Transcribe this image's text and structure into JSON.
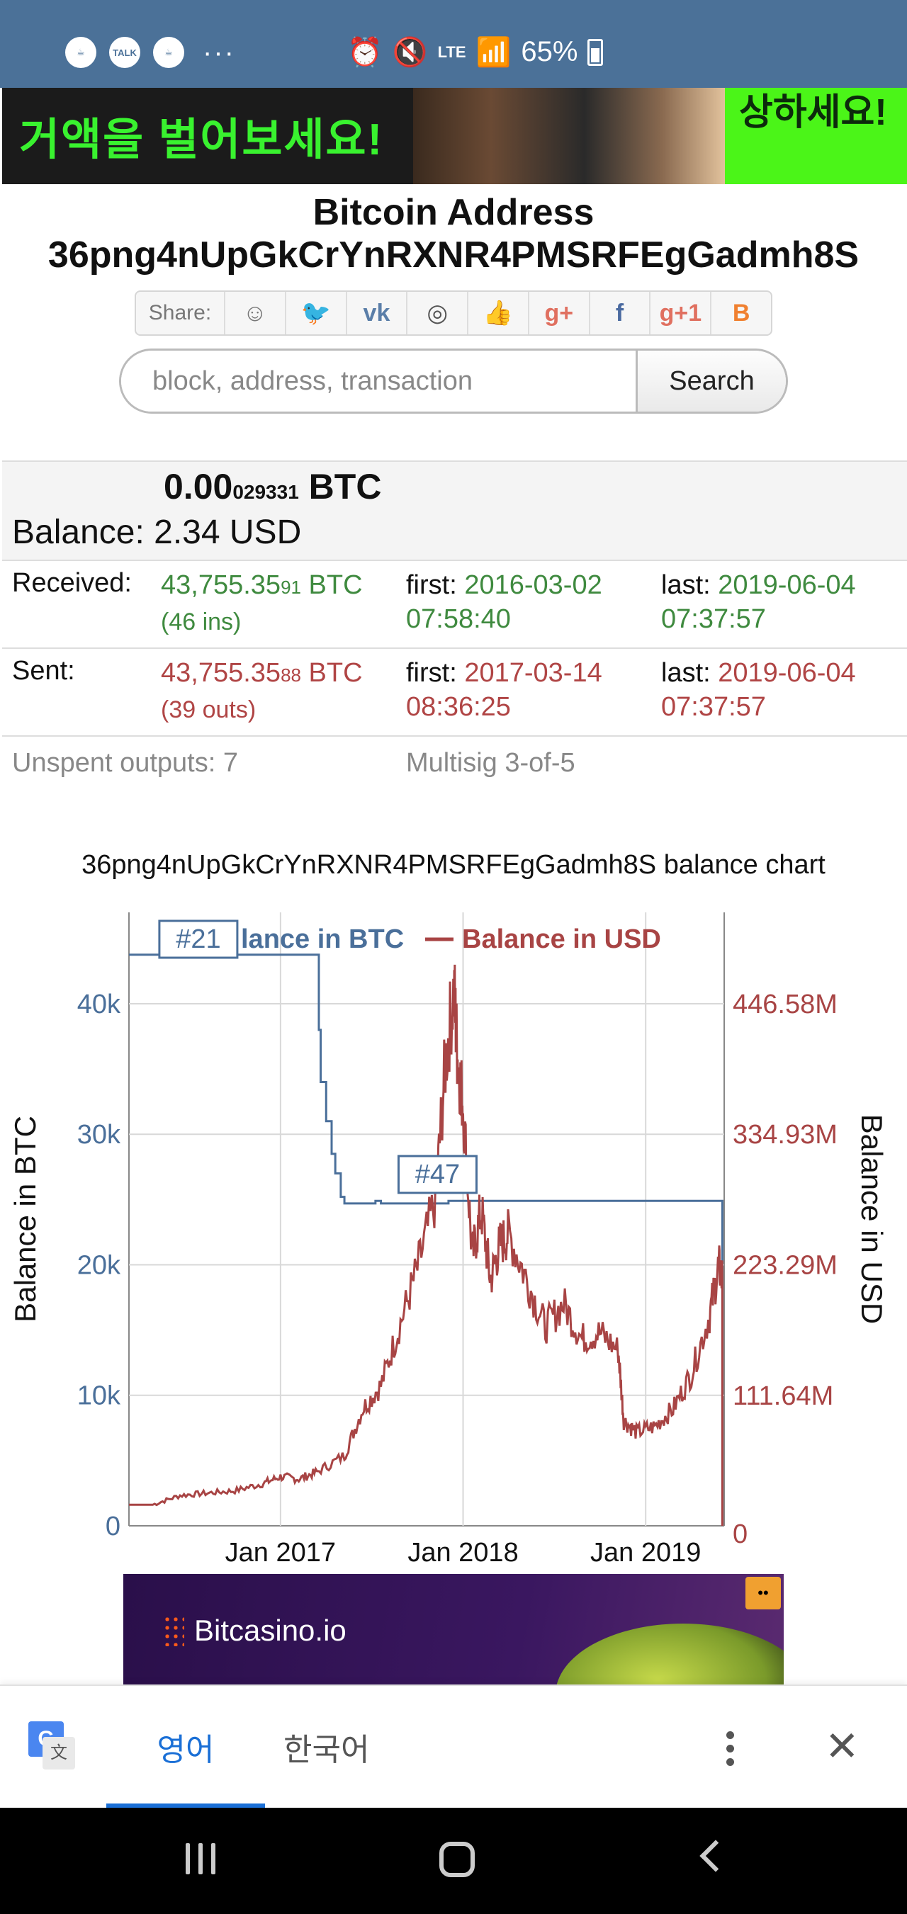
{
  "status_bar": {
    "left_icons": [
      "starbucks-icon",
      "talk-icon",
      "starbucks-icon"
    ],
    "talk_label": "TALK",
    "more_label": "···",
    "network_label": "LTE",
    "battery_percent": "65%"
  },
  "banner": {
    "text_left": "거액을 벌어보세요!",
    "text_right": "상하세요!"
  },
  "header": {
    "title_line1": "Bitcoin Address",
    "title_line2": "36png4nUpGkCrYnRXNR4PMSRFEgGadmh8S"
  },
  "share": {
    "label": "Share:",
    "buttons": [
      {
        "name": "reddit-icon",
        "glyph": "☺",
        "color": "#777777"
      },
      {
        "name": "twitter-icon",
        "glyph": "🐦",
        "color": "#4aa3e0"
      },
      {
        "name": "vk-icon",
        "glyph": "vk",
        "color": "#5a7ea8"
      },
      {
        "name": "weibo-icon",
        "glyph": "◎",
        "color": "#555555"
      },
      {
        "name": "like-icon",
        "glyph": "👍",
        "color": "#4a7ac0"
      },
      {
        "name": "google-plus-icon",
        "glyph": "g+",
        "color": "#e07060"
      },
      {
        "name": "facebook-icon",
        "glyph": "f",
        "color": "#4a6aa0"
      },
      {
        "name": "google-plus-one-icon",
        "glyph": "g+1",
        "color": "#e07060"
      },
      {
        "name": "blogger-icon",
        "glyph": "B",
        "color": "#f08030"
      }
    ]
  },
  "search": {
    "placeholder": "block, address, transaction",
    "button_label": "Search"
  },
  "balance": {
    "btc_main": "0.00",
    "btc_small": "029331",
    "btc_unit": "BTC",
    "usd_text": "Balance: 2.34 USD"
  },
  "received": {
    "label": "Received:",
    "amount_main": "43,755.35",
    "amount_small": "91",
    "unit": "BTC",
    "count": "(46 ins)",
    "first_label": "first:",
    "first_date": "2016-03-02",
    "first_time": "07:58:40",
    "last_label": "last:",
    "last_date": "2019-06-04",
    "last_time": "07:37:57"
  },
  "sent": {
    "label": "Sent:",
    "amount_main": "43,755.35",
    "amount_small": "88",
    "unit": "BTC",
    "count": "(39 outs)",
    "first_label": "first:",
    "first_date": "2017-03-14",
    "first_time": "08:36:25",
    "last_label": "last:",
    "last_date": "2019-06-04",
    "last_time": "07:37:57"
  },
  "misc": {
    "unspent": "Unspent outputs: 7",
    "multisig": "Multisig 3-of-5"
  },
  "chart_title": "36png4nUpGkCrYnRXNR4PMSRFEgGadmh8S balance chart",
  "chart_data": {
    "type": "line",
    "legend": [
      "Balance in BTC",
      "Balance in USD"
    ],
    "legend_visible_text": "lance in BTC",
    "legend_usd_text": "Balance in USD",
    "ylabel_left": "Balance in BTC",
    "ylabel_right": "Balance in USD",
    "left_ticks": [
      "0",
      "10k",
      "20k",
      "30k",
      "40k"
    ],
    "left_tick_values": [
      0,
      10000,
      20000,
      30000,
      40000
    ],
    "left_ylim": [
      0,
      47000
    ],
    "right_ticks": [
      "0",
      "111.64M",
      "223.29M",
      "334.93M",
      "446.58M"
    ],
    "right_tick_values": [
      0,
      111.64,
      223.29,
      334.93,
      446.58
    ],
    "right_unit": "M USD",
    "x_ticks": [
      "Jan 2017",
      "Jan 2018",
      "Jan 2019"
    ],
    "x_tick_values": [
      2017.0,
      2018.0,
      2019.0
    ],
    "xlim": [
      2016.17,
      2019.43
    ],
    "colors": {
      "btc": "#4a6f9a",
      "usd": "#a84444"
    },
    "annotations": [
      {
        "label": "#21",
        "x": 2016.55,
        "y": 43755
      },
      {
        "label": "#47",
        "x": 2017.86,
        "y": 24800
      }
    ],
    "series": [
      {
        "name": "Balance in BTC",
        "x": [
          2016.17,
          2017.2,
          2017.21,
          2017.22,
          2017.25,
          2017.28,
          2017.3,
          2017.33,
          2017.35,
          2017.5,
          2017.52,
          2017.55,
          2017.9,
          2017.92,
          2019.42,
          2019.42
        ],
        "y": [
          43755,
          43755,
          38000,
          34000,
          31000,
          28500,
          27000,
          25200,
          24700,
          24700,
          24900,
          24700,
          24700,
          24900,
          24900,
          0
        ]
      },
      {
        "name": "Balance in USD",
        "x": [
          2016.17,
          2016.3,
          2016.45,
          2016.6,
          2016.75,
          2016.9,
          2017.0,
          2017.1,
          2017.2,
          2017.35,
          2017.45,
          2017.55,
          2017.65,
          2017.75,
          2017.85,
          2017.9,
          2017.95,
          2017.97,
          2018.0,
          2018.05,
          2018.1,
          2018.15,
          2018.2,
          2018.25,
          2018.35,
          2018.45,
          2018.55,
          2018.65,
          2018.75,
          2018.85,
          2018.88,
          2018.95,
          2019.05,
          2019.15,
          2019.25,
          2019.35,
          2019.4,
          2019.42,
          2019.42
        ],
        "y": [
          18,
          18,
          26,
          28,
          30,
          36,
          42,
          40,
          46,
          60,
          100,
          120,
          170,
          220,
          280,
          390,
          460,
          400,
          360,
          230,
          270,
          210,
          240,
          250,
          210,
          170,
          190,
          160,
          165,
          150,
          90,
          80,
          85,
          100,
          130,
          180,
          223,
          210,
          0
        ]
      }
    ]
  },
  "bottom_ad": {
    "brand": "Bitcasino.io",
    "badge": "••"
  },
  "translate_bar": {
    "icon_g": "G",
    "icon_w": "文",
    "lang_english": "영어",
    "lang_korean": "한국어",
    "close": "✕"
  }
}
